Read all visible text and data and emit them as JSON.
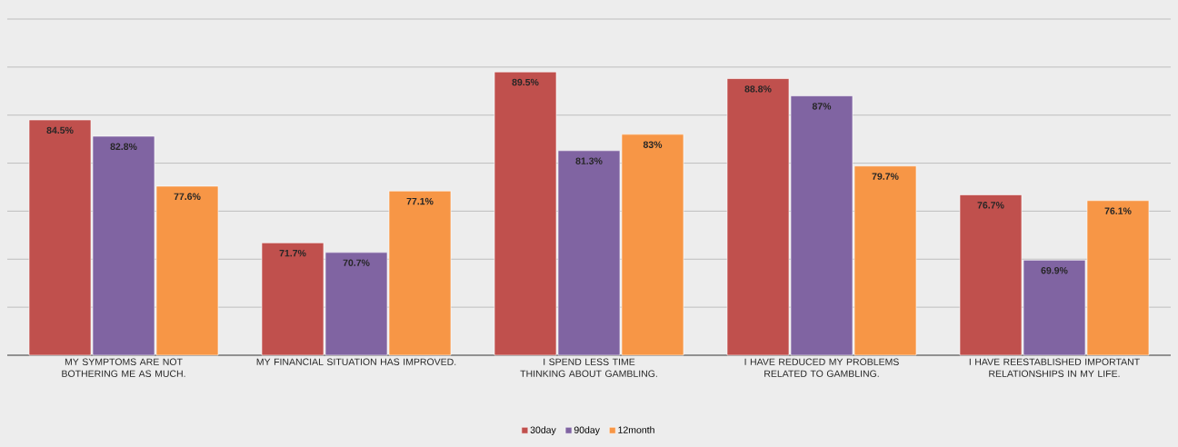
{
  "chart_data": {
    "type": "bar",
    "categories": [
      "MY SYMPTOMS ARE NOT BOTHERING ME AS MUCH.",
      "MY FINANCIAL SITUATION HAS IMPROVED.",
      "I SPEND LESS TIME THINKING ABOUT GAMBLING.",
      "I HAVE REDUCED MY PROBLEMS RELATED TO GAMBLING.",
      "I HAVE REESTABLISHED IMPORTANT RELATIONSHIPS IN MY LIFE."
    ],
    "series": [
      {
        "name": "30day",
        "color": "#c0504d",
        "values": [
          84.5,
          71.7,
          89.5,
          88.8,
          76.7
        ],
        "value_labels": [
          "84.5%",
          "71.7%",
          "89.5%",
          "88.8%",
          "76.7%"
        ]
      },
      {
        "name": "90day",
        "color": "#8064a2",
        "values": [
          82.8,
          70.7,
          81.3,
          87,
          69.9
        ],
        "value_labels": [
          "82.8%",
          "70.7%",
          "81.3%",
          "87%",
          "69.9%"
        ]
      },
      {
        "name": "12month",
        "color": "#f79646",
        "values": [
          77.6,
          77.1,
          83,
          79.7,
          76.1
        ],
        "value_labels": [
          "77.6%",
          "77.1%",
          "83%",
          "79.7%",
          "76.1%"
        ]
      }
    ],
    "ylim": [
      60,
      95
    ],
    "yticks": [
      {
        "value": 60,
        "label": null
      },
      {
        "value": 65,
        "label": null
      },
      {
        "value": 70,
        "label": null
      },
      {
        "value": 75,
        "label": null
      },
      {
        "value": 80,
        "label": null
      },
      {
        "value": 85,
        "label": null
      },
      {
        "value": 90,
        "label": null
      },
      {
        "value": 95,
        "label": null
      }
    ],
    "tick_labels": "x",
    "grid": "y",
    "legend": "bottom"
  }
}
